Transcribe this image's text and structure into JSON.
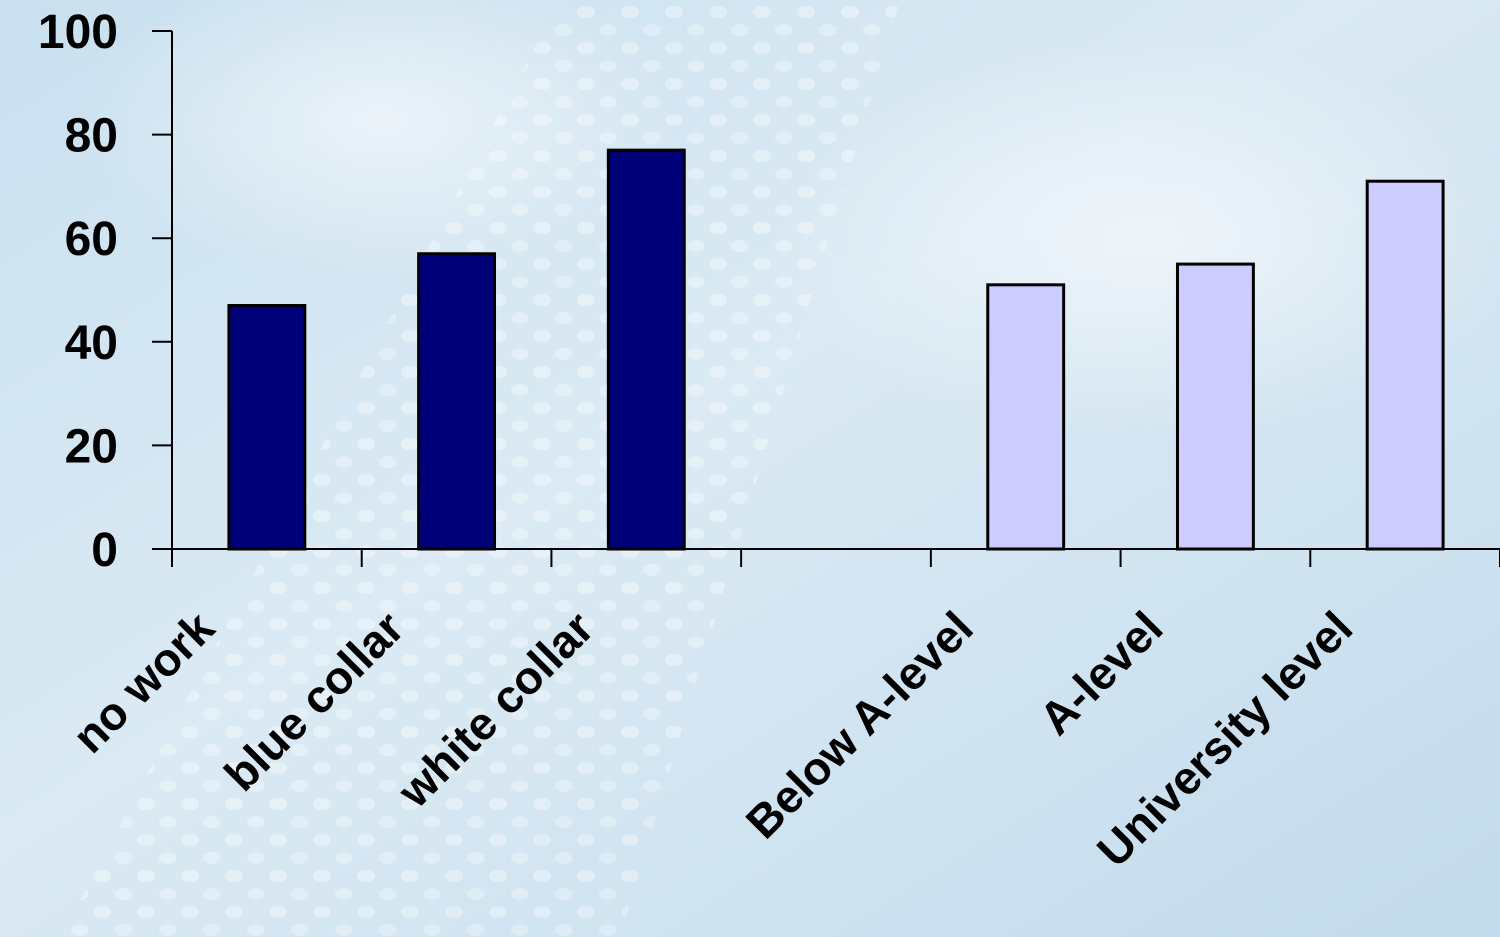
{
  "chart_data": {
    "type": "bar",
    "categories": [
      "no work",
      "blue collar",
      "white collar",
      "",
      "Below A-level",
      "A-level",
      "University level"
    ],
    "values": [
      47,
      57,
      77,
      null,
      51,
      55,
      71
    ],
    "bar_colors": [
      "#000078",
      "#000078",
      "#000078",
      null,
      "#CCCCFF",
      "#CCCCFF",
      "#CCCCFF"
    ],
    "groups": [
      {
        "categories": [
          "no work",
          "blue collar",
          "white collar"
        ],
        "color": "#000078"
      },
      {
        "categories": [
          "Below A-level",
          "A-level",
          "University level"
        ],
        "color": "#CCCCFF"
      }
    ],
    "yticks": [
      "0",
      "20",
      "40",
      "60",
      "80",
      "100"
    ],
    "ylim": [
      0,
      100
    ],
    "grid": false,
    "legend": "none",
    "title": "",
    "xlabel": "",
    "ylabel": ""
  },
  "colors": {
    "background_light": "#dcebf5",
    "background_mid": "#c4dcec",
    "axis": "#000000",
    "bar_outline": "#000000"
  }
}
